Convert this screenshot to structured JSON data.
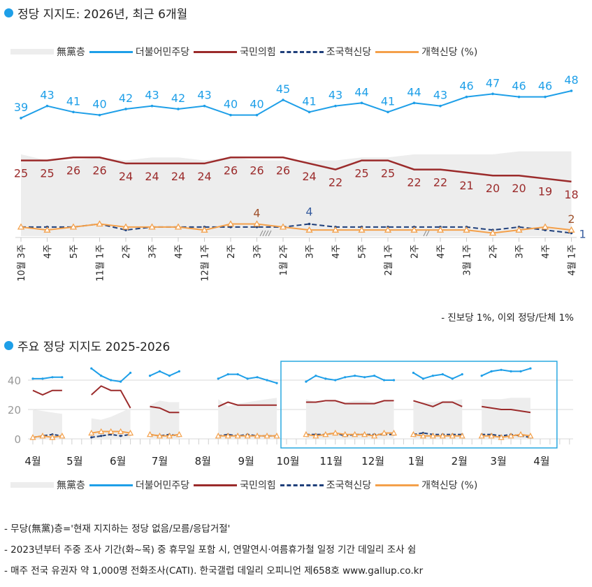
{
  "colors": {
    "nonparty": "#EDEDED",
    "dem": "#1E9FE8",
    "ppp": "#9B2B2B",
    "cho": "#1F3F7A",
    "reform": "#F4A04A",
    "highlight": "#29A8E0",
    "grid": "#D9D9D9"
  },
  "legend": {
    "nonparty": "無黨층",
    "dem": "더불어민주당",
    "ppp": "국민의힘",
    "cho": "조국혁신당",
    "reform": "개혁신당 (%)"
  },
  "top": {
    "title": "정당 지지도: 2026년, 최근 6개월",
    "footnote": "- 진보당 1%, 이외 정당/단체 1%"
  },
  "bottom": {
    "title": "주요 정당 지지도 2025-2026"
  },
  "notes": [
    "- 무당(無黨)층='현재 지지하는 정당 없음/모름/응답거절'",
    "- 2023년부터 주중 조사 기간(화~목) 중 휴무일 포함 시, 연말연시·여름휴가철 일정 기간 데일리 조사 쉼",
    "- 매주 전국 유권자 약 1,000명 전화조사(CATI). 한국갤럽 데일리 오피니언 제658호 www.gallup.co.kr"
  ],
  "chart_data": [
    {
      "type": "line",
      "title": "정당 지지도: 2026년, 최근 6개월",
      "categories": [
        "10월 3주",
        "4주",
        "5주",
        "11월 1주",
        "2주",
        "3주",
        "4주",
        "12월 1주",
        "2주",
        "3주",
        "1월 2주",
        "3주",
        "4주",
        "5주",
        "2월 1주",
        "2주",
        "4주",
        "3월 1주",
        "2주",
        "3주",
        "4주",
        "4월 1주"
      ],
      "series": [
        {
          "name": "無黨층",
          "kind": "area",
          "values": [
            27,
            25,
            25,
            26,
            25,
            26,
            26,
            25,
            26,
            25,
            25,
            25,
            25,
            26,
            26,
            27,
            27,
            27,
            27,
            28,
            28,
            28
          ]
        },
        {
          "name": "더불어민주당",
          "values": [
            39,
            43,
            41,
            40,
            42,
            43,
            42,
            43,
            40,
            40,
            45,
            41,
            43,
            44,
            41,
            44,
            43,
            46,
            47,
            46,
            46,
            48
          ],
          "labels": "all"
        },
        {
          "name": "국민의힘",
          "values": [
            25,
            25,
            26,
            26,
            24,
            24,
            24,
            24,
            26,
            26,
            26,
            24,
            22,
            25,
            25,
            22,
            22,
            21,
            20,
            20,
            19,
            18
          ],
          "labels": "all"
        },
        {
          "name": "조국혁신당",
          "values": [
            3,
            3,
            3,
            4,
            2,
            3,
            3,
            3,
            3,
            3,
            3,
            4,
            3,
            3,
            3,
            3,
            3,
            3,
            2,
            3,
            2,
            1
          ],
          "labeled_points": [
            11,
            21
          ]
        },
        {
          "name": "개혁신당",
          "values": [
            3,
            2,
            3,
            4,
            3,
            3,
            3,
            2,
            4,
            4,
            3,
            2,
            2,
            2,
            2,
            2,
            2,
            2,
            1,
            2,
            3,
            2
          ],
          "labeled_points": [
            9,
            21
          ]
        }
      ],
      "breaks_after": [
        "3주",
        "2주"
      ],
      "unit": "%"
    },
    {
      "type": "line",
      "title": "주요 정당 지지도 2025-2026",
      "yticks": [
        0,
        20,
        40
      ],
      "ylim": [
        0,
        50
      ],
      "grid": true,
      "month_ticks": [
        {
          "label": "4월",
          "date": "2025-04-01"
        },
        {
          "label": "5월",
          "date": "2025-05-01"
        },
        {
          "label": "6월",
          "date": "2025-06-01"
        },
        {
          "label": "7월",
          "date": "2025-07-01"
        },
        {
          "label": "8월",
          "date": "2025-08-01"
        },
        {
          "label": "9월",
          "date": "2025-09-01"
        },
        {
          "label": "10월",
          "date": "2025-10-01"
        },
        {
          "label": "11월",
          "date": "2025-11-01"
        },
        {
          "label": "12월",
          "date": "2025-12-01"
        },
        {
          "label": "1월",
          "date": "2026-01-01"
        },
        {
          "label": "2월",
          "date": "2026-02-01"
        },
        {
          "label": "3월",
          "date": "2026-03-01"
        },
        {
          "label": "4월",
          "date": "2026-04-01"
        }
      ],
      "highlight_range": [
        "2025-10-01",
        "2026-04-07"
      ],
      "segments": [
        {
          "start": "2025-04-01",
          "nonparty": [
            20,
            19,
            18,
            17
          ],
          "dem": [
            41,
            41,
            42,
            42
          ],
          "ppp": [
            33,
            30,
            33,
            33
          ],
          "cho": [
            1,
            2,
            3,
            2
          ],
          "reform": [
            1,
            2,
            1,
            2
          ]
        },
        {
          "start": "2025-05-13",
          "nonparty": [
            14,
            13,
            15,
            18,
            21
          ],
          "dem": [
            48,
            43,
            40,
            39,
            45
          ],
          "ppp": [
            30,
            36,
            33,
            33,
            21
          ],
          "cho": [
            1,
            2,
            3,
            2,
            3
          ],
          "reform": [
            4,
            5,
            5,
            5,
            4
          ]
        },
        {
          "start": "2025-06-24",
          "nonparty": [
            23,
            26,
            25,
            25
          ],
          "dem": [
            43,
            46,
            43,
            46
          ],
          "ppp": [
            22,
            21,
            18,
            18
          ],
          "cho": [
            3,
            2,
            3,
            2
          ],
          "reform": [
            3,
            2,
            2,
            3
          ]
        },
        {
          "start": "2025-08-12",
          "nonparty": [
            27,
            22,
            24,
            25,
            26,
            27,
            28
          ],
          "dem": [
            41,
            44,
            44,
            41,
            42,
            40,
            38
          ],
          "ppp": [
            22,
            25,
            23,
            23,
            23,
            23,
            23
          ],
          "cho": [
            2,
            3,
            2,
            3,
            2,
            2,
            2
          ],
          "reform": [
            2,
            2,
            2,
            2,
            2,
            2,
            2
          ]
        },
        {
          "start": "2025-10-14",
          "nonparty": [
            27,
            25,
            25,
            26,
            25,
            26,
            26,
            25,
            26,
            25
          ],
          "dem": [
            39,
            43,
            41,
            40,
            42,
            43,
            42,
            43,
            40,
            40
          ],
          "ppp": [
            25,
            25,
            26,
            26,
            24,
            24,
            24,
            24,
            26,
            26
          ],
          "cho": [
            3,
            3,
            3,
            4,
            2,
            3,
            3,
            3,
            3,
            3
          ],
          "reform": [
            3,
            2,
            3,
            4,
            3,
            3,
            3,
            2,
            4,
            4
          ]
        },
        {
          "start": "2025-12-30",
          "nonparty": [
            25,
            25,
            25,
            26,
            26,
            27
          ],
          "dem": [
            45,
            41,
            43,
            44,
            41,
            44
          ],
          "ppp": [
            26,
            24,
            22,
            25,
            25,
            22
          ],
          "cho": [
            3,
            4,
            3,
            3,
            3,
            3
          ],
          "reform": [
            3,
            2,
            2,
            2,
            2,
            2
          ]
        },
        {
          "start": "2026-02-17",
          "nonparty": [
            27,
            27,
            27,
            28,
            28,
            28
          ],
          "dem": [
            43,
            46,
            47,
            46,
            46,
            48
          ],
          "ppp": [
            22,
            21,
            20,
            20,
            19,
            18
          ],
          "cho": [
            3,
            3,
            2,
            3,
            2,
            1
          ],
          "reform": [
            2,
            2,
            1,
            2,
            3,
            2
          ]
        }
      ]
    }
  ]
}
